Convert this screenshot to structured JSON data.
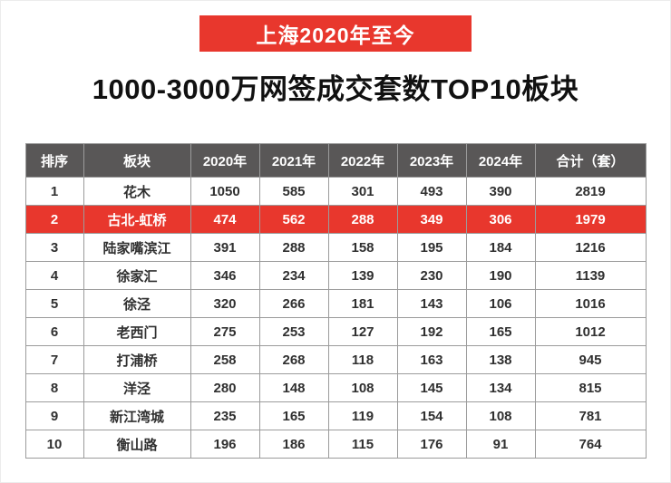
{
  "badge": {
    "label": "上海2020年至今"
  },
  "title": "1000-3000万网签成交套数TOP10板块",
  "colors": {
    "accent_red": "#e8372d",
    "header_bg": "#595757",
    "border_gray": "#9b9b9b"
  },
  "table": {
    "headers": [
      "排序",
      "板块",
      "2020年",
      "2021年",
      "2022年",
      "2023年",
      "2024年",
      "合计（套）"
    ],
    "rows": [
      {
        "highlight": false,
        "cells": [
          "1",
          "花木",
          "1050",
          "585",
          "301",
          "493",
          "390",
          "2819"
        ]
      },
      {
        "highlight": true,
        "cells": [
          "2",
          "古北-虹桥",
          "474",
          "562",
          "288",
          "349",
          "306",
          "1979"
        ]
      },
      {
        "highlight": false,
        "cells": [
          "3",
          "陆家嘴滨江",
          "391",
          "288",
          "158",
          "195",
          "184",
          "1216"
        ]
      },
      {
        "highlight": false,
        "cells": [
          "4",
          "徐家汇",
          "346",
          "234",
          "139",
          "230",
          "190",
          "1139"
        ]
      },
      {
        "highlight": false,
        "cells": [
          "5",
          "徐泾",
          "320",
          "266",
          "181",
          "143",
          "106",
          "1016"
        ]
      },
      {
        "highlight": false,
        "cells": [
          "6",
          "老西门",
          "275",
          "253",
          "127",
          "192",
          "165",
          "1012"
        ]
      },
      {
        "highlight": false,
        "cells": [
          "7",
          "打浦桥",
          "258",
          "268",
          "118",
          "163",
          "138",
          "945"
        ]
      },
      {
        "highlight": false,
        "cells": [
          "8",
          "洋泾",
          "280",
          "148",
          "108",
          "145",
          "134",
          "815"
        ]
      },
      {
        "highlight": false,
        "cells": [
          "9",
          "新江湾城",
          "235",
          "165",
          "119",
          "154",
          "108",
          "781"
        ]
      },
      {
        "highlight": false,
        "cells": [
          "10",
          "衡山路",
          "196",
          "186",
          "115",
          "176",
          "91",
          "764"
        ]
      }
    ]
  },
  "chart_data": {
    "type": "table",
    "title": "1000-3000万网签成交套数TOP10板块",
    "subtitle": "上海2020年至今",
    "columns": [
      "排序",
      "板块",
      "2020年",
      "2021年",
      "2022年",
      "2023年",
      "2024年",
      "合计（套）"
    ],
    "rows": [
      [
        "1",
        "花木",
        1050,
        585,
        301,
        493,
        390,
        2819
      ],
      [
        "2",
        "古北-虹桥",
        474,
        562,
        288,
        349,
        306,
        1979
      ],
      [
        "3",
        "陆家嘴滨江",
        391,
        288,
        158,
        195,
        184,
        1216
      ],
      [
        "4",
        "徐家汇",
        346,
        234,
        139,
        230,
        190,
        1139
      ],
      [
        "5",
        "徐泾",
        320,
        266,
        181,
        143,
        106,
        1016
      ],
      [
        "6",
        "老西门",
        275,
        253,
        127,
        192,
        165,
        1012
      ],
      [
        "7",
        "打浦桥",
        258,
        268,
        118,
        163,
        138,
        945
      ],
      [
        "8",
        "洋泾",
        280,
        148,
        108,
        145,
        134,
        815
      ],
      [
        "9",
        "新江湾城",
        235,
        165,
        119,
        154,
        108,
        781
      ],
      [
        "10",
        "衡山路",
        196,
        186,
        115,
        176,
        91,
        764
      ]
    ],
    "highlighted_row_index": 1,
    "highlight_color": "#e8372d"
  }
}
